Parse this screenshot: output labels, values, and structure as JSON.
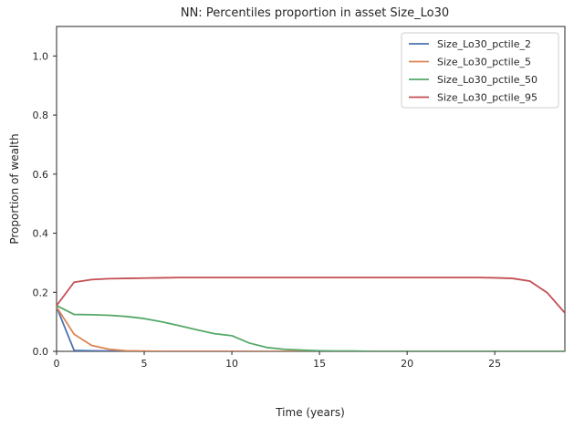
{
  "chart_data": {
    "type": "line",
    "title": "NN: Percentiles proportion in asset Size_Lo30",
    "xlabel": "Time (years)",
    "ylabel": "Proportion of wealth",
    "xlim": [
      0,
      29
    ],
    "ylim": [
      0,
      1.1
    ],
    "xticks": [
      0,
      5,
      10,
      15,
      20,
      25
    ],
    "yticks": [
      0.0,
      0.2,
      0.4,
      0.6,
      0.8,
      1.0
    ],
    "xtick_labels": [
      "0",
      "5",
      "10",
      "15",
      "20",
      "25"
    ],
    "ytick_labels": [
      "0.0",
      "0.2",
      "0.4",
      "0.6",
      "0.8",
      "1.0"
    ],
    "grid": false,
    "legend_position": "top-right",
    "x": [
      0,
      1,
      2,
      3,
      4,
      5,
      6,
      7,
      8,
      9,
      10,
      11,
      12,
      13,
      14,
      15,
      16,
      17,
      18,
      19,
      20,
      21,
      22,
      23,
      24,
      25,
      26,
      27,
      28,
      29
    ],
    "series": [
      {
        "name": "Size_Lo30_pctile_2",
        "color": "#4c72b0",
        "values": [
          0.15,
          0.003,
          0.002,
          0.001,
          0.001,
          0,
          0,
          0,
          0,
          0,
          0,
          0,
          0,
          0,
          0,
          0,
          0,
          0,
          0,
          0,
          0,
          0,
          0,
          0,
          0,
          0,
          0,
          0,
          0,
          0
        ]
      },
      {
        "name": "Size_Lo30_pctile_5",
        "color": "#dd8452",
        "values": [
          0.15,
          0.058,
          0.02,
          0.007,
          0.002,
          0.001,
          0,
          0,
          0,
          0,
          0,
          0,
          0,
          0,
          0,
          0,
          0,
          0,
          0,
          0,
          0,
          0,
          0,
          0,
          0,
          0,
          0,
          0,
          0,
          0
        ]
      },
      {
        "name": "Size_Lo30_pctile_50",
        "color": "#55a868",
        "values": [
          0.155,
          0.125,
          0.124,
          0.122,
          0.118,
          0.111,
          0.1,
          0.087,
          0.073,
          0.06,
          0.053,
          0.028,
          0.013,
          0.007,
          0.004,
          0.002,
          0.001,
          0.001,
          0,
          0,
          0,
          0,
          0,
          0,
          0,
          0,
          0,
          0,
          0,
          0
        ]
      },
      {
        "name": "Size_Lo30_pctile_95",
        "color": "#c44e52",
        "values": [
          0.155,
          0.234,
          0.243,
          0.246,
          0.247,
          0.248,
          0.249,
          0.25,
          0.25,
          0.25,
          0.25,
          0.25,
          0.25,
          0.25,
          0.25,
          0.25,
          0.25,
          0.25,
          0.25,
          0.25,
          0.25,
          0.25,
          0.25,
          0.25,
          0.25,
          0.249,
          0.247,
          0.238,
          0.198,
          0.13
        ]
      }
    ]
  }
}
